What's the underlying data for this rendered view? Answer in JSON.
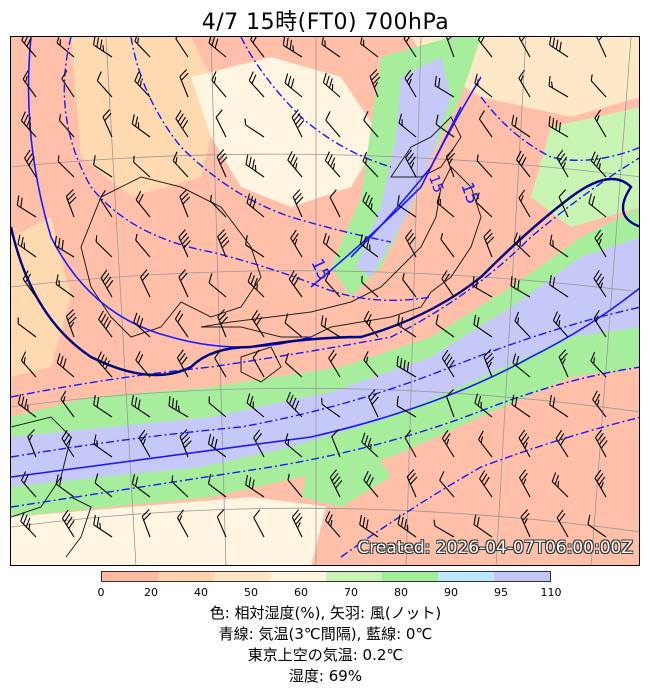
{
  "title": "4/7  15時(FT0)     700hPa",
  "created": "Created: 2026-04-07T06:00:00Z",
  "map": {
    "contour_labels": [
      "15",
      "15",
      "15"
    ],
    "colors": {
      "humidity_20": "#ffbfa8",
      "humidity_40": "#ffd9b0",
      "humidity_50": "#ffe8c8",
      "humidity_60": "#fff5e0",
      "humidity_70": "#c8f5b4",
      "humidity_80": "#a6ee9c",
      "humidity_90": "#b8e4ff",
      "humidity_95": "#c6c8f8",
      "temp_line": "#1a1aff",
      "zero_line": "#000080"
    }
  },
  "colorbar": {
    "ticks": [
      "0",
      "20",
      "40",
      "50",
      "60",
      "70",
      "80",
      "90",
      "95",
      "110"
    ],
    "colors": [
      "#ffb9a0",
      "#ffd3ad",
      "#ffe5c4",
      "#fff4de",
      "#c9f4b5",
      "#a4ee9b",
      "#bde6ff",
      "#c3c6f7"
    ]
  },
  "legend": {
    "line1": "色: 相対湿度(%),  矢羽: 風(ノット)",
    "line2": "青線: 気温(3℃間隔), 藍線: 0℃",
    "line3": "東京上空の気温: 0.2℃",
    "line4": "湿度: 69%"
  }
}
